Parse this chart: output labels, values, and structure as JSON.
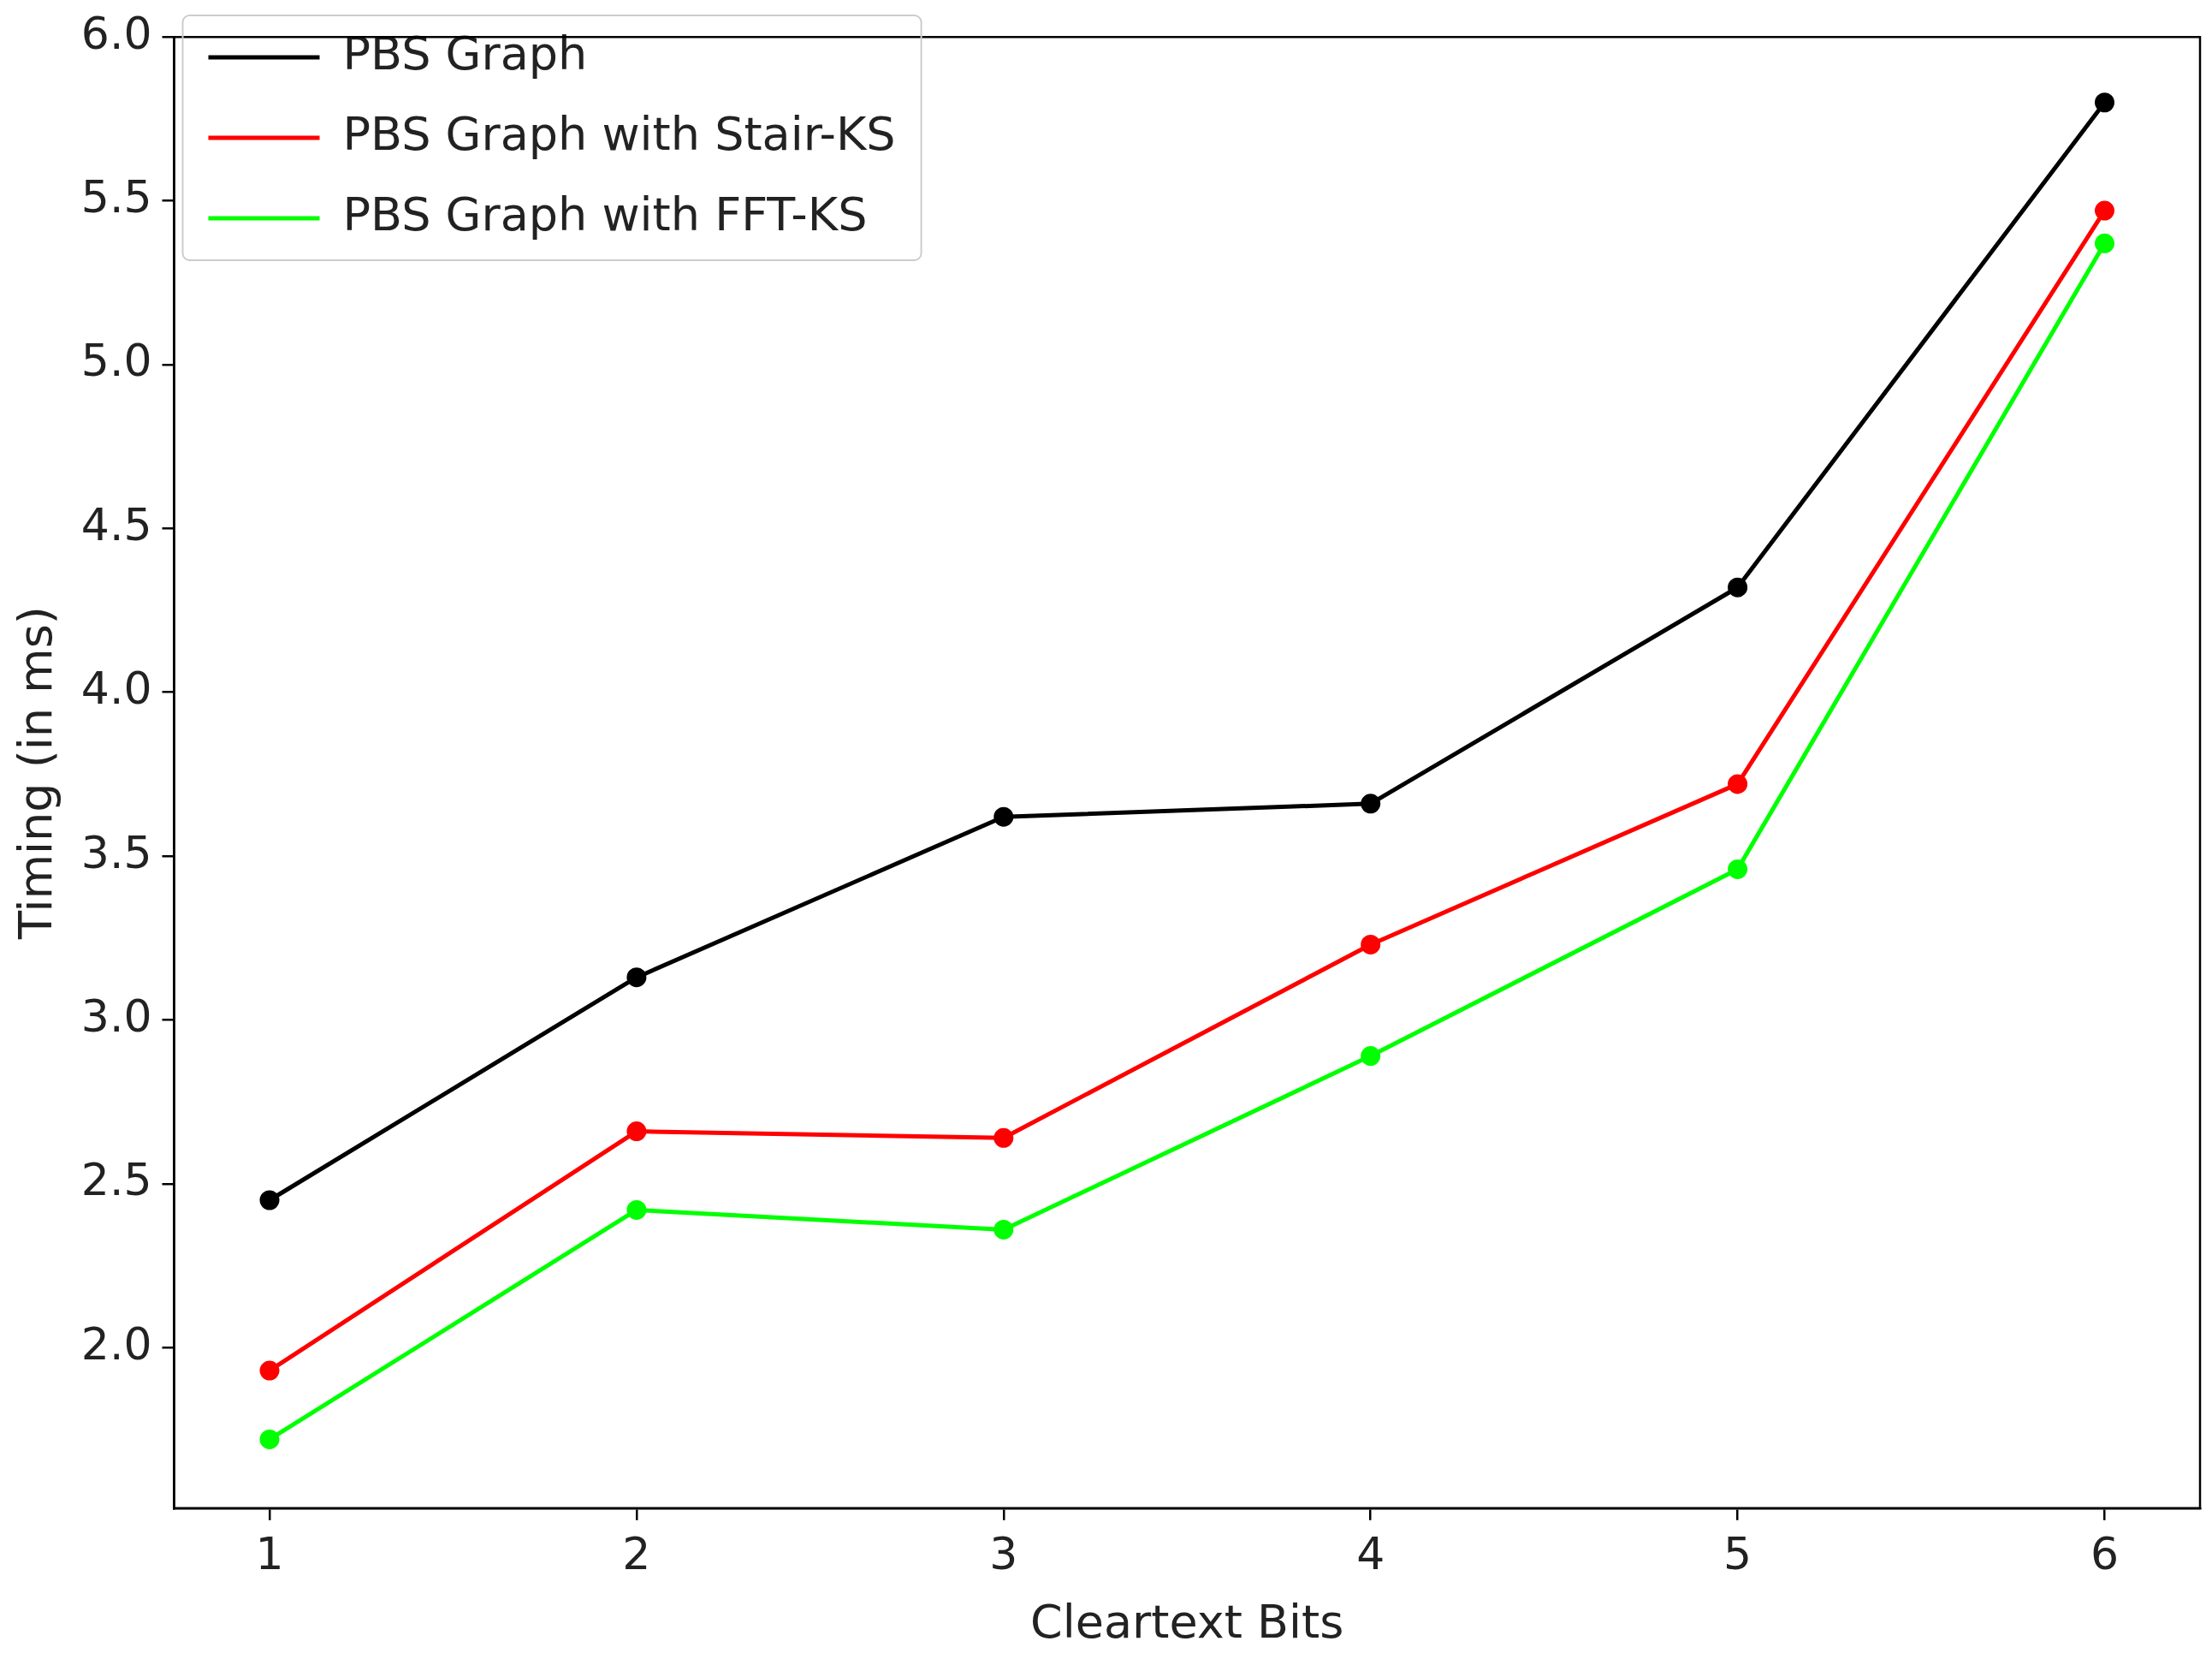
{
  "chart_data": {
    "type": "line",
    "xlabel": "Cleartext Bits",
    "ylabel": "Timing (in ms)",
    "x": [
      1,
      2,
      3,
      4,
      5,
      6
    ],
    "series": [
      {
        "name": "PBS Graph",
        "color": "#000000",
        "values": [
          2.45,
          3.13,
          3.62,
          3.66,
          4.32,
          5.8
        ]
      },
      {
        "name": "PBS Graph with Stair-KS",
        "color": "#ff0000",
        "values": [
          1.93,
          2.66,
          2.64,
          3.23,
          3.72,
          5.47
        ]
      },
      {
        "name": "PBS Graph with FFT-KS",
        "color": "#00ff00",
        "values": [
          1.72,
          2.42,
          2.36,
          2.89,
          3.46,
          5.37
        ]
      }
    ],
    "xlim": [
      0.74,
      6.26
    ],
    "xticks": [
      1,
      2,
      3,
      4,
      5,
      6
    ],
    "ylim": [
      1.51,
      6.0
    ],
    "yticks": [
      {
        "value": 2,
        "label": "2.0"
      },
      2.5,
      {
        "value": 3,
        "label": "3.0"
      },
      3.5,
      {
        "value": 4,
        "label": "4.0"
      },
      4.5,
      {
        "value": 5,
        "label": "5.0"
      },
      5.5,
      {
        "value": 6,
        "label": "6.0"
      }
    ],
    "grid": false,
    "legend": "top left",
    "marker": "circle",
    "line_style": "solid"
  }
}
